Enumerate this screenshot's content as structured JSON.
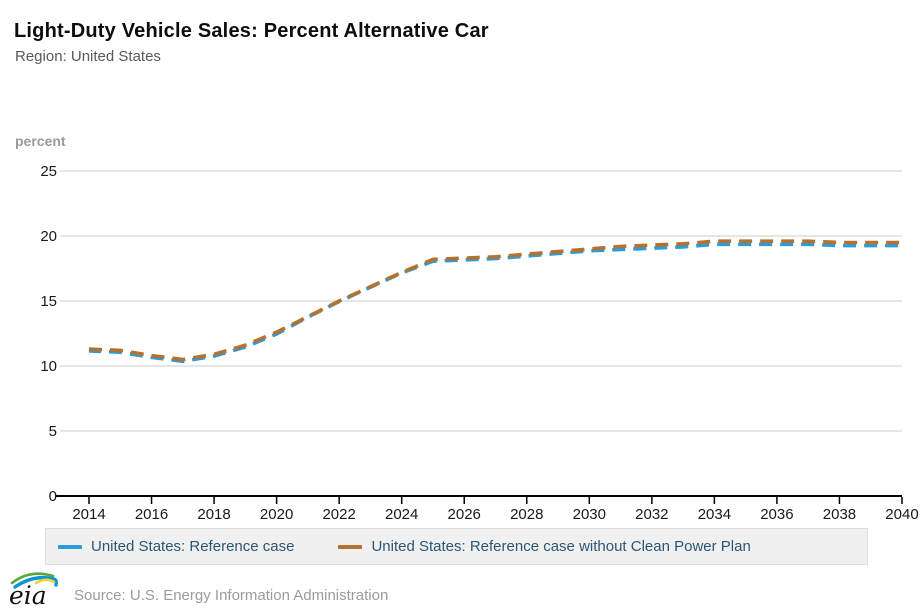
{
  "header": {
    "title": "Light-Duty Vehicle Sales: Percent Alternative Car",
    "subtitle": "Region: United States"
  },
  "chart_data": {
    "type": "line",
    "title": "Light-Duty Vehicle Sales: Percent Alternative Car",
    "subtitle": "Region: United States",
    "ylabel": "percent",
    "xlabel": "",
    "ylim": [
      0,
      25
    ],
    "yticks": [
      0,
      5,
      10,
      15,
      20,
      25
    ],
    "xticks": [
      2014,
      2016,
      2018,
      2020,
      2022,
      2024,
      2026,
      2028,
      2030,
      2032,
      2034,
      2036,
      2038,
      2040
    ],
    "grid": "horizontal",
    "legend_position": "bottom",
    "line_style": "dashed",
    "x": [
      2014,
      2015,
      2016,
      2017,
      2018,
      2019,
      2020,
      2021,
      2022,
      2023,
      2024,
      2025,
      2026,
      2027,
      2028,
      2029,
      2030,
      2031,
      2032,
      2033,
      2034,
      2035,
      2036,
      2037,
      2038,
      2039,
      2040
    ],
    "series": [
      {
        "name": "United States: Reference case",
        "color": "#2b9cd8",
        "values": [
          11.3,
          11.2,
          10.8,
          10.5,
          10.9,
          11.6,
          12.6,
          13.9,
          15.1,
          16.2,
          17.3,
          18.2,
          18.3,
          18.4,
          18.6,
          18.8,
          19.0,
          19.1,
          19.2,
          19.3,
          19.5,
          19.5,
          19.5,
          19.5,
          19.4,
          19.4,
          19.4
        ]
      },
      {
        "name": "United States: Reference case without Clean Power Plan",
        "color": "#b5712e",
        "values": [
          11.3,
          11.2,
          10.8,
          10.5,
          10.9,
          11.6,
          12.6,
          13.8,
          15.0,
          16.1,
          17.2,
          18.2,
          18.3,
          18.4,
          18.6,
          18.8,
          19.0,
          19.2,
          19.3,
          19.4,
          19.6,
          19.6,
          19.6,
          19.6,
          19.5,
          19.5,
          19.5
        ]
      }
    ]
  },
  "colors": {
    "grid": "#cccccc",
    "axis": "#000000",
    "tick_label": "#1a1a1a",
    "legend_bg": "#f0f0f0",
    "legend_text": "#2a5676"
  },
  "footer": {
    "logo_text": "eia",
    "source": "Source: U.S. Energy Information Administration"
  }
}
